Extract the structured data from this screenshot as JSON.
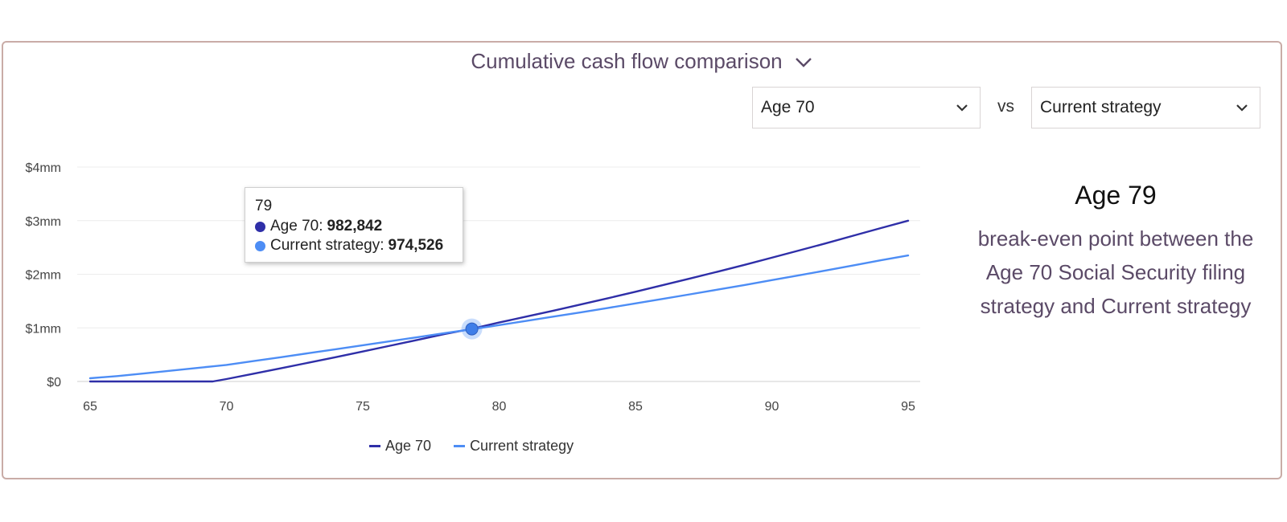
{
  "header": {
    "title": "Cumulative cash flow comparison"
  },
  "controls": {
    "strategy_a": "Age 70",
    "vs_label": "vs",
    "strategy_b": "Current strategy"
  },
  "tooltip": {
    "x_value": "79",
    "rows": [
      {
        "name": "Age 70",
        "value": "982,842",
        "color": "#2f2fa8"
      },
      {
        "name": "Current strategy",
        "value": "974,526",
        "color": "#4d8df5"
      }
    ]
  },
  "summary": {
    "headline": "Age 79",
    "description": "break-even point between the Age 70 Social Security filing strategy and Current strategy"
  },
  "chart_data": {
    "type": "line",
    "x": [
      65,
      66,
      67,
      68,
      69,
      69.5,
      70,
      71,
      72,
      73,
      74,
      75,
      76,
      77,
      78,
      79,
      80,
      81,
      82,
      83,
      84,
      85,
      86,
      87,
      88,
      89,
      90,
      91,
      92,
      93,
      94,
      95
    ],
    "series": [
      {
        "name": "Age 70",
        "color": "#2f2fa8",
        "values": [
          0,
          0,
          0,
          0,
          0,
          0,
          45000,
          145000,
          246000,
          349000,
          453000,
          559000,
          666000,
          775000,
          885000,
          982842,
          1100000,
          1210000,
          1322000,
          1437000,
          1554000,
          1674000,
          1796000,
          1920000,
          2047000,
          2176000,
          2308000,
          2443000,
          2580000,
          2720000,
          2862000,
          3000000
        ]
      },
      {
        "name": "Current strategy",
        "color": "#4d8df5",
        "values": [
          60000,
          100000,
          152000,
          204000,
          256000,
          282000,
          308000,
          380000,
          453000,
          527000,
          601000,
          675000,
          750000,
          826000,
          902000,
          974526,
          1052000,
          1130000,
          1210000,
          1290000,
          1372000,
          1456000,
          1540000,
          1625000,
          1712000,
          1800000,
          1890000,
          1980000,
          2072000,
          2166000,
          2260000,
          2350000
        ]
      }
    ],
    "x_ticks": [
      "65",
      "70",
      "75",
      "80",
      "85",
      "90",
      "95"
    ],
    "y_ticks": [
      "$0",
      "$1mm",
      "$2mm",
      "$3mm",
      "$4mm"
    ],
    "xlim": [
      65,
      95
    ],
    "ylim": [
      0,
      4000000
    ],
    "highlight": {
      "x": 79,
      "y": 980000
    },
    "grid": true,
    "legend": "bottom-center"
  }
}
